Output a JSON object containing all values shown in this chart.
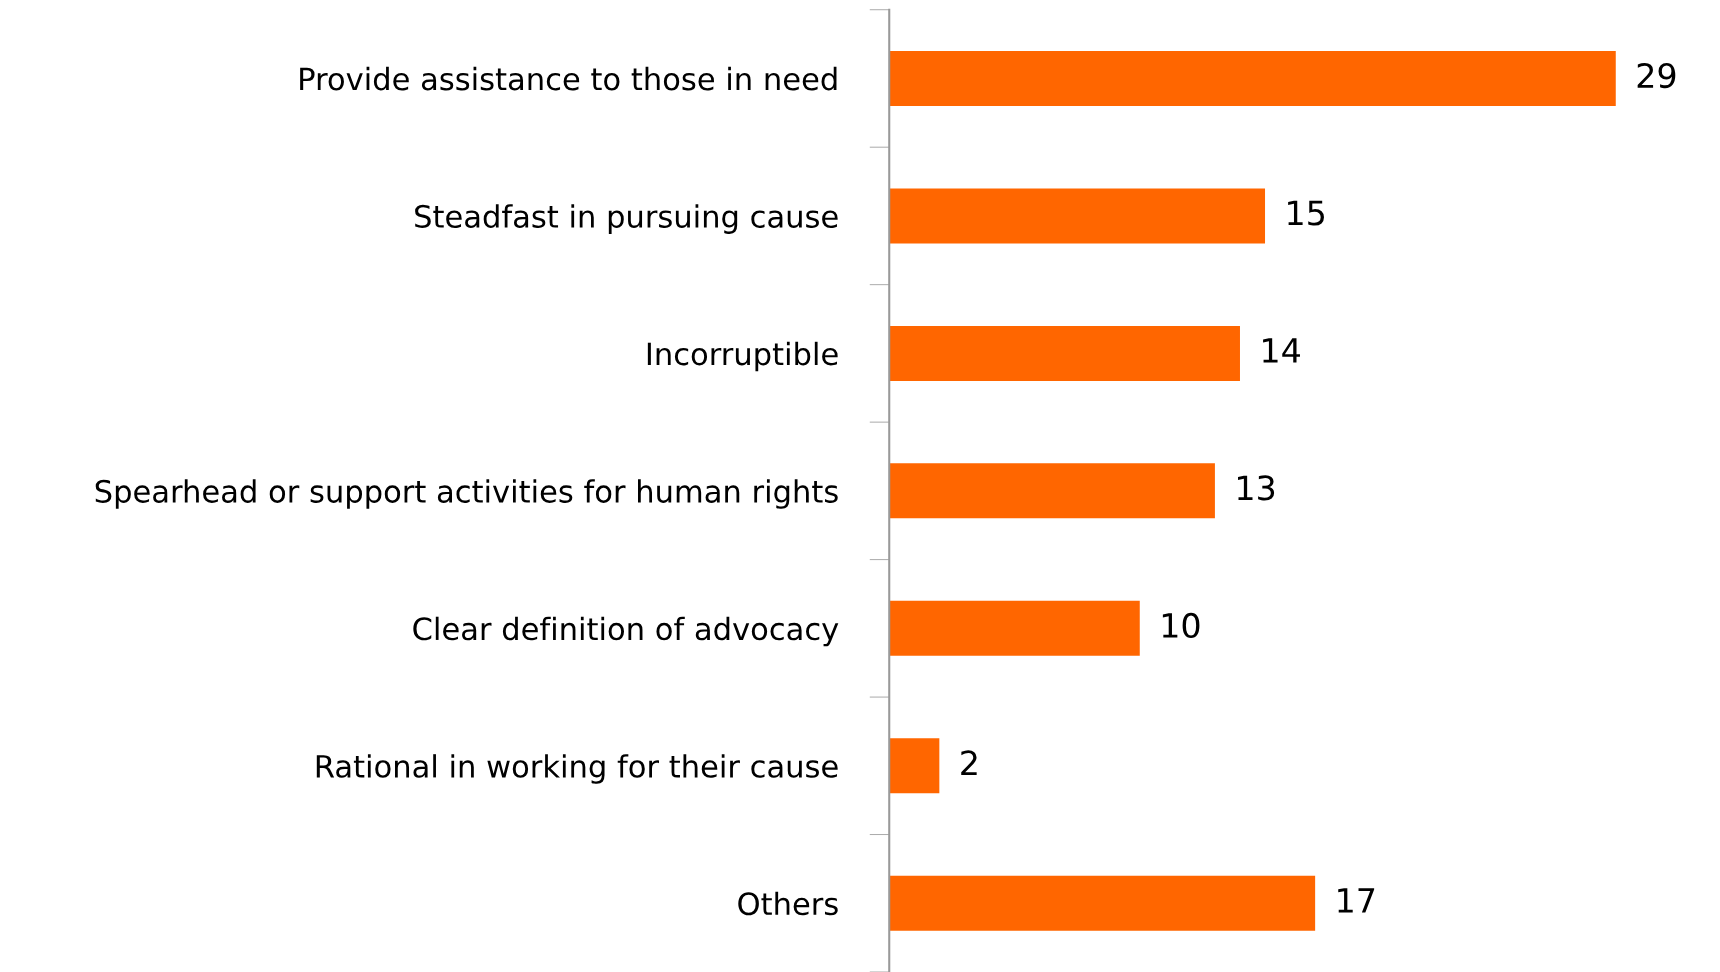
{
  "chart_data": {
    "type": "bar",
    "orientation": "horizontal",
    "categories": [
      "Provide assistance to those in need",
      "Steadfast in pursuing cause",
      "Incorruptible",
      "Spearhead or support activities for human rights",
      "Clear definition of advocacy",
      "Rational in working for their cause",
      "Others"
    ],
    "values": [
      29,
      15,
      14,
      13,
      10,
      2,
      17
    ],
    "color": "#ff6600",
    "data_labels": true,
    "grid": false,
    "legend": false
  }
}
